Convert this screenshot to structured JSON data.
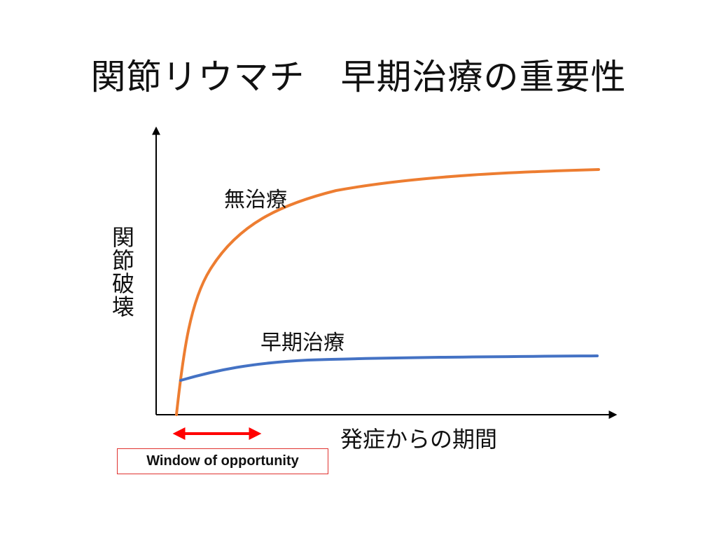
{
  "title": "関節リウマチ　早期治療の重要性",
  "axes": {
    "y_label": "関節破壊",
    "x_label": "発症からの期間"
  },
  "curves": [
    {
      "label": "無治療",
      "color": "#ed7d31"
    },
    {
      "label": "早期治療",
      "color": "#4472c4"
    }
  ],
  "window": {
    "label": "Window of opportunity",
    "arrow_color": "#ff0000"
  }
}
